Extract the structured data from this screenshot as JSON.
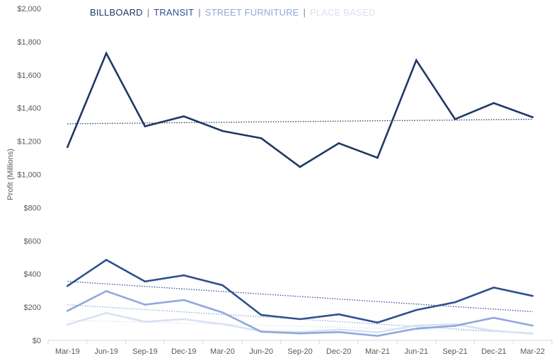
{
  "chart_data": {
    "type": "line",
    "title": "",
    "xlabel": "",
    "ylabel": "Profit (Millions)",
    "ylim": [
      0,
      2000
    ],
    "yticks": [
      0,
      200,
      400,
      600,
      800,
      1000,
      1200,
      1400,
      1600,
      1800,
      2000
    ],
    "ytick_labels": [
      "$0",
      "$200",
      "$400",
      "$600",
      "$800",
      "$1,000",
      "$1,200",
      "$1,400",
      "$1,600",
      "$1,800",
      "$2,000"
    ],
    "categories": [
      "Mar-19",
      "Jun-19",
      "Sep-19",
      "Dec-19",
      "Mar-20",
      "Jun-20",
      "Sep-20",
      "Dec-20",
      "Mar-21",
      "Jun-21",
      "Sep-21",
      "Dec-21",
      "Mar-22"
    ],
    "grid": false,
    "legend_position": "top-left",
    "legend_separator": "|",
    "trendlines": true,
    "series": [
      {
        "name": "BILLBOARD",
        "color": "#1f3864",
        "values": [
          1165,
          1730,
          1290,
          1350,
          1262,
          1218,
          1045,
          1188,
          1100,
          1688,
          1333,
          1430,
          1345
        ]
      },
      {
        "name": "TRANSIT",
        "color": "#2f4f8f",
        "values": [
          328,
          485,
          355,
          392,
          332,
          153,
          128,
          157,
          107,
          183,
          230,
          318,
          268
        ]
      },
      {
        "name": "STREET FURNITURE",
        "color": "#8ea9db",
        "values": [
          178,
          297,
          215,
          243,
          168,
          52,
          42,
          50,
          27,
          71,
          88,
          136,
          89
        ]
      },
      {
        "name": "PLACE BASED",
        "color": "#d9e1f2",
        "values": [
          95,
          165,
          112,
          128,
          98,
          55,
          50,
          65,
          48,
          90,
          97,
          58,
          40
        ]
      }
    ]
  }
}
